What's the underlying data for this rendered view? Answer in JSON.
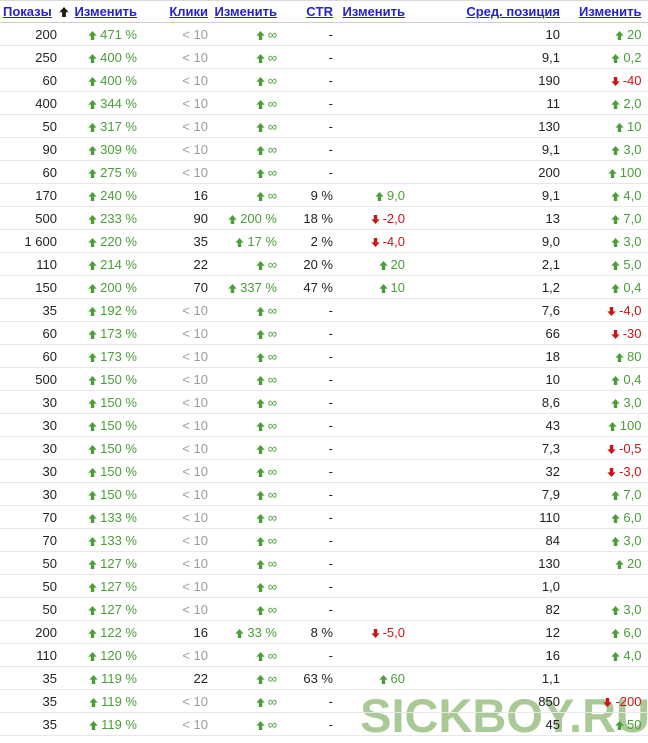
{
  "colors": {
    "link_blue": "#2722cc",
    "positive_green": "#4a9e38",
    "negative_red": "#cc1414",
    "muted_gray": "#9c9c9c",
    "text": "#222222",
    "watermark_green": "#a9ca96"
  },
  "sort": {
    "column": "Показы",
    "direction": "ascending"
  },
  "watermark": "SICKBOY.RU",
  "header": {
    "columns": [
      {
        "label": "Показы"
      },
      {
        "label": "Изменить"
      },
      {
        "label": "Клики"
      },
      {
        "label": "Изменить"
      },
      {
        "label": "CTR"
      },
      {
        "label": "Изменить"
      },
      {
        "label": "Сред. позиция"
      },
      {
        "label": "Изменить"
      }
    ]
  },
  "rows": [
    [
      "200",
      {
        "d": "up",
        "t": "471 %"
      },
      {
        "t": "< 10",
        "muted": true
      },
      {
        "d": "up",
        "t": "∞"
      },
      "-",
      null,
      "10",
      {
        "d": "up",
        "t": "20"
      }
    ],
    [
      "250",
      {
        "d": "up",
        "t": "400 %"
      },
      {
        "t": "< 10",
        "muted": true
      },
      {
        "d": "up",
        "t": "∞"
      },
      "-",
      null,
      "9,1",
      {
        "d": "up",
        "t": "0,2"
      }
    ],
    [
      "60",
      {
        "d": "up",
        "t": "400 %"
      },
      {
        "t": "< 10",
        "muted": true
      },
      {
        "d": "up",
        "t": "∞"
      },
      "-",
      null,
      "190",
      {
        "d": "down",
        "t": "-40"
      }
    ],
    [
      "400",
      {
        "d": "up",
        "t": "344 %"
      },
      {
        "t": "< 10",
        "muted": true
      },
      {
        "d": "up",
        "t": "∞"
      },
      "-",
      null,
      "11",
      {
        "d": "up",
        "t": "2,0"
      }
    ],
    [
      "50",
      {
        "d": "up",
        "t": "317 %"
      },
      {
        "t": "< 10",
        "muted": true
      },
      {
        "d": "up",
        "t": "∞"
      },
      "-",
      null,
      "130",
      {
        "d": "up",
        "t": "10"
      }
    ],
    [
      "90",
      {
        "d": "up",
        "t": "309 %"
      },
      {
        "t": "< 10",
        "muted": true
      },
      {
        "d": "up",
        "t": "∞"
      },
      "-",
      null,
      "9,1",
      {
        "d": "up",
        "t": "3,0"
      }
    ],
    [
      "60",
      {
        "d": "up",
        "t": "275 %"
      },
      {
        "t": "< 10",
        "muted": true
      },
      {
        "d": "up",
        "t": "∞"
      },
      "-",
      null,
      "200",
      {
        "d": "up",
        "t": "100"
      }
    ],
    [
      "170",
      {
        "d": "up",
        "t": "240 %"
      },
      "16",
      {
        "d": "up",
        "t": "∞"
      },
      "9 %",
      {
        "d": "up",
        "t": "9,0"
      },
      "9,1",
      {
        "d": "up",
        "t": "4,0"
      }
    ],
    [
      "500",
      {
        "d": "up",
        "t": "233 %"
      },
      "90",
      {
        "d": "up",
        "t": "200 %"
      },
      "18 %",
      {
        "d": "down",
        "t": "-2,0"
      },
      "13",
      {
        "d": "up",
        "t": "7,0"
      }
    ],
    [
      "1 600",
      {
        "d": "up",
        "t": "220 %"
      },
      "35",
      {
        "d": "up",
        "t": "17 %"
      },
      "2 %",
      {
        "d": "down",
        "t": "-4,0"
      },
      "9,0",
      {
        "d": "up",
        "t": "3,0"
      }
    ],
    [
      "110",
      {
        "d": "up",
        "t": "214 %"
      },
      "22",
      {
        "d": "up",
        "t": "∞"
      },
      "20 %",
      {
        "d": "up",
        "t": "20"
      },
      "2,1",
      {
        "d": "up",
        "t": "5,0"
      }
    ],
    [
      "150",
      {
        "d": "up",
        "t": "200 %"
      },
      "70",
      {
        "d": "up",
        "t": "337 %"
      },
      "47 %",
      {
        "d": "up",
        "t": "10"
      },
      "1,2",
      {
        "d": "up",
        "t": "0,4"
      }
    ],
    [
      "35",
      {
        "d": "up",
        "t": "192 %"
      },
      {
        "t": "< 10",
        "muted": true
      },
      {
        "d": "up",
        "t": "∞"
      },
      "-",
      null,
      "7,6",
      {
        "d": "down",
        "t": "-4,0"
      }
    ],
    [
      "60",
      {
        "d": "up",
        "t": "173 %"
      },
      {
        "t": "< 10",
        "muted": true
      },
      {
        "d": "up",
        "t": "∞"
      },
      "-",
      null,
      "66",
      {
        "d": "down",
        "t": "-30"
      }
    ],
    [
      "60",
      {
        "d": "up",
        "t": "173 %"
      },
      {
        "t": "< 10",
        "muted": true
      },
      {
        "d": "up",
        "t": "∞"
      },
      "-",
      null,
      "18",
      {
        "d": "up",
        "t": "80"
      }
    ],
    [
      "500",
      {
        "d": "up",
        "t": "150 %"
      },
      {
        "t": "< 10",
        "muted": true
      },
      {
        "d": "up",
        "t": "∞"
      },
      "-",
      null,
      "10",
      {
        "d": "up",
        "t": "0,4"
      }
    ],
    [
      "30",
      {
        "d": "up",
        "t": "150 %"
      },
      {
        "t": "< 10",
        "muted": true
      },
      {
        "d": "up",
        "t": "∞"
      },
      "-",
      null,
      "8,6",
      {
        "d": "up",
        "t": "3,0"
      }
    ],
    [
      "30",
      {
        "d": "up",
        "t": "150 %"
      },
      {
        "t": "< 10",
        "muted": true
      },
      {
        "d": "up",
        "t": "∞"
      },
      "-",
      null,
      "43",
      {
        "d": "up",
        "t": "100"
      }
    ],
    [
      "30",
      {
        "d": "up",
        "t": "150 %"
      },
      {
        "t": "< 10",
        "muted": true
      },
      {
        "d": "up",
        "t": "∞"
      },
      "-",
      null,
      "7,3",
      {
        "d": "down",
        "t": "-0,5"
      }
    ],
    [
      "30",
      {
        "d": "up",
        "t": "150 %"
      },
      {
        "t": "< 10",
        "muted": true
      },
      {
        "d": "up",
        "t": "∞"
      },
      "-",
      null,
      "32",
      {
        "d": "down",
        "t": "-3,0"
      }
    ],
    [
      "30",
      {
        "d": "up",
        "t": "150 %"
      },
      {
        "t": "< 10",
        "muted": true
      },
      {
        "d": "up",
        "t": "∞"
      },
      "-",
      null,
      "7,9",
      {
        "d": "up",
        "t": "7,0"
      }
    ],
    [
      "70",
      {
        "d": "up",
        "t": "133 %"
      },
      {
        "t": "< 10",
        "muted": true
      },
      {
        "d": "up",
        "t": "∞"
      },
      "-",
      null,
      "110",
      {
        "d": "up",
        "t": "6,0"
      }
    ],
    [
      "70",
      {
        "d": "up",
        "t": "133 %"
      },
      {
        "t": "< 10",
        "muted": true
      },
      {
        "d": "up",
        "t": "∞"
      },
      "-",
      null,
      "84",
      {
        "d": "up",
        "t": "3,0"
      }
    ],
    [
      "50",
      {
        "d": "up",
        "t": "127 %"
      },
      {
        "t": "< 10",
        "muted": true
      },
      {
        "d": "up",
        "t": "∞"
      },
      "-",
      null,
      "130",
      {
        "d": "up",
        "t": "20"
      }
    ],
    [
      "50",
      {
        "d": "up",
        "t": "127 %"
      },
      {
        "t": "< 10",
        "muted": true
      },
      {
        "d": "up",
        "t": "∞"
      },
      "-",
      null,
      "1,0",
      null
    ],
    [
      "50",
      {
        "d": "up",
        "t": "127 %"
      },
      {
        "t": "< 10",
        "muted": true
      },
      {
        "d": "up",
        "t": "∞"
      },
      "-",
      null,
      "82",
      {
        "d": "up",
        "t": "3,0"
      }
    ],
    [
      "200",
      {
        "d": "up",
        "t": "122 %"
      },
      "16",
      {
        "d": "up",
        "t": "33 %"
      },
      "8 %",
      {
        "d": "down",
        "t": "-5,0"
      },
      "12",
      {
        "d": "up",
        "t": "6,0"
      }
    ],
    [
      "110",
      {
        "d": "up",
        "t": "120 %"
      },
      {
        "t": "< 10",
        "muted": true
      },
      {
        "d": "up",
        "t": "∞"
      },
      "-",
      null,
      "16",
      {
        "d": "up",
        "t": "4,0"
      }
    ],
    [
      "35",
      {
        "d": "up",
        "t": "119 %"
      },
      "22",
      {
        "d": "up",
        "t": "∞"
      },
      "63 %",
      {
        "d": "up",
        "t": "60"
      },
      "1,1",
      null
    ],
    [
      "35",
      {
        "d": "up",
        "t": "119 %"
      },
      {
        "t": "< 10",
        "muted": true
      },
      {
        "d": "up",
        "t": "∞"
      },
      "-",
      null,
      "850",
      {
        "d": "down",
        "t": "-200"
      }
    ],
    [
      "35",
      {
        "d": "up",
        "t": "119 %"
      },
      {
        "t": "< 10",
        "muted": true
      },
      {
        "d": "up",
        "t": "∞"
      },
      "-",
      null,
      "45",
      {
        "d": "up",
        "t": "50"
      }
    ]
  ]
}
